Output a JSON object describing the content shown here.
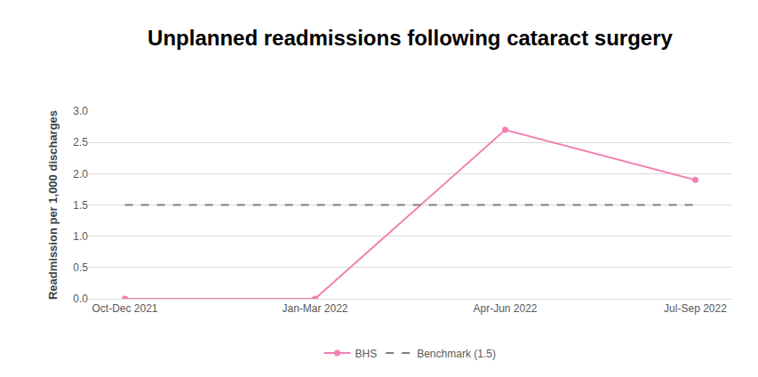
{
  "chart_data": {
    "type": "line",
    "title": "Unplanned readmissions following cataract surgery",
    "y_label": "Readmission per 1,000 discharges",
    "categories": [
      "Oct-Dec 2021",
      "Jan-Mar 2022",
      "Apr-Jun 2022",
      "Jul-Sep 2022"
    ],
    "series": [
      {
        "name": "BHS",
        "color": "#f27fb2",
        "values": [
          0,
          0,
          2.7,
          1.9
        ],
        "marker": "circle",
        "line_style": "solid"
      },
      {
        "name": "Benchmark (1.5)",
        "color": "#7f7f7f",
        "values": [
          1.5,
          1.5,
          1.5,
          1.5
        ],
        "marker": "none",
        "line_style": "dash"
      }
    ],
    "ylim": [
      0,
      3
    ],
    "yticks": [
      {
        "value": 0,
        "label": "0.0"
      },
      0.5,
      {
        "value": 1,
        "label": "1.0"
      },
      1.5,
      {
        "value": 2,
        "label": "2.0"
      },
      2.5,
      {
        "value": 3,
        "label": "3.0"
      }
    ],
    "grid": true,
    "legend": "bottom"
  }
}
